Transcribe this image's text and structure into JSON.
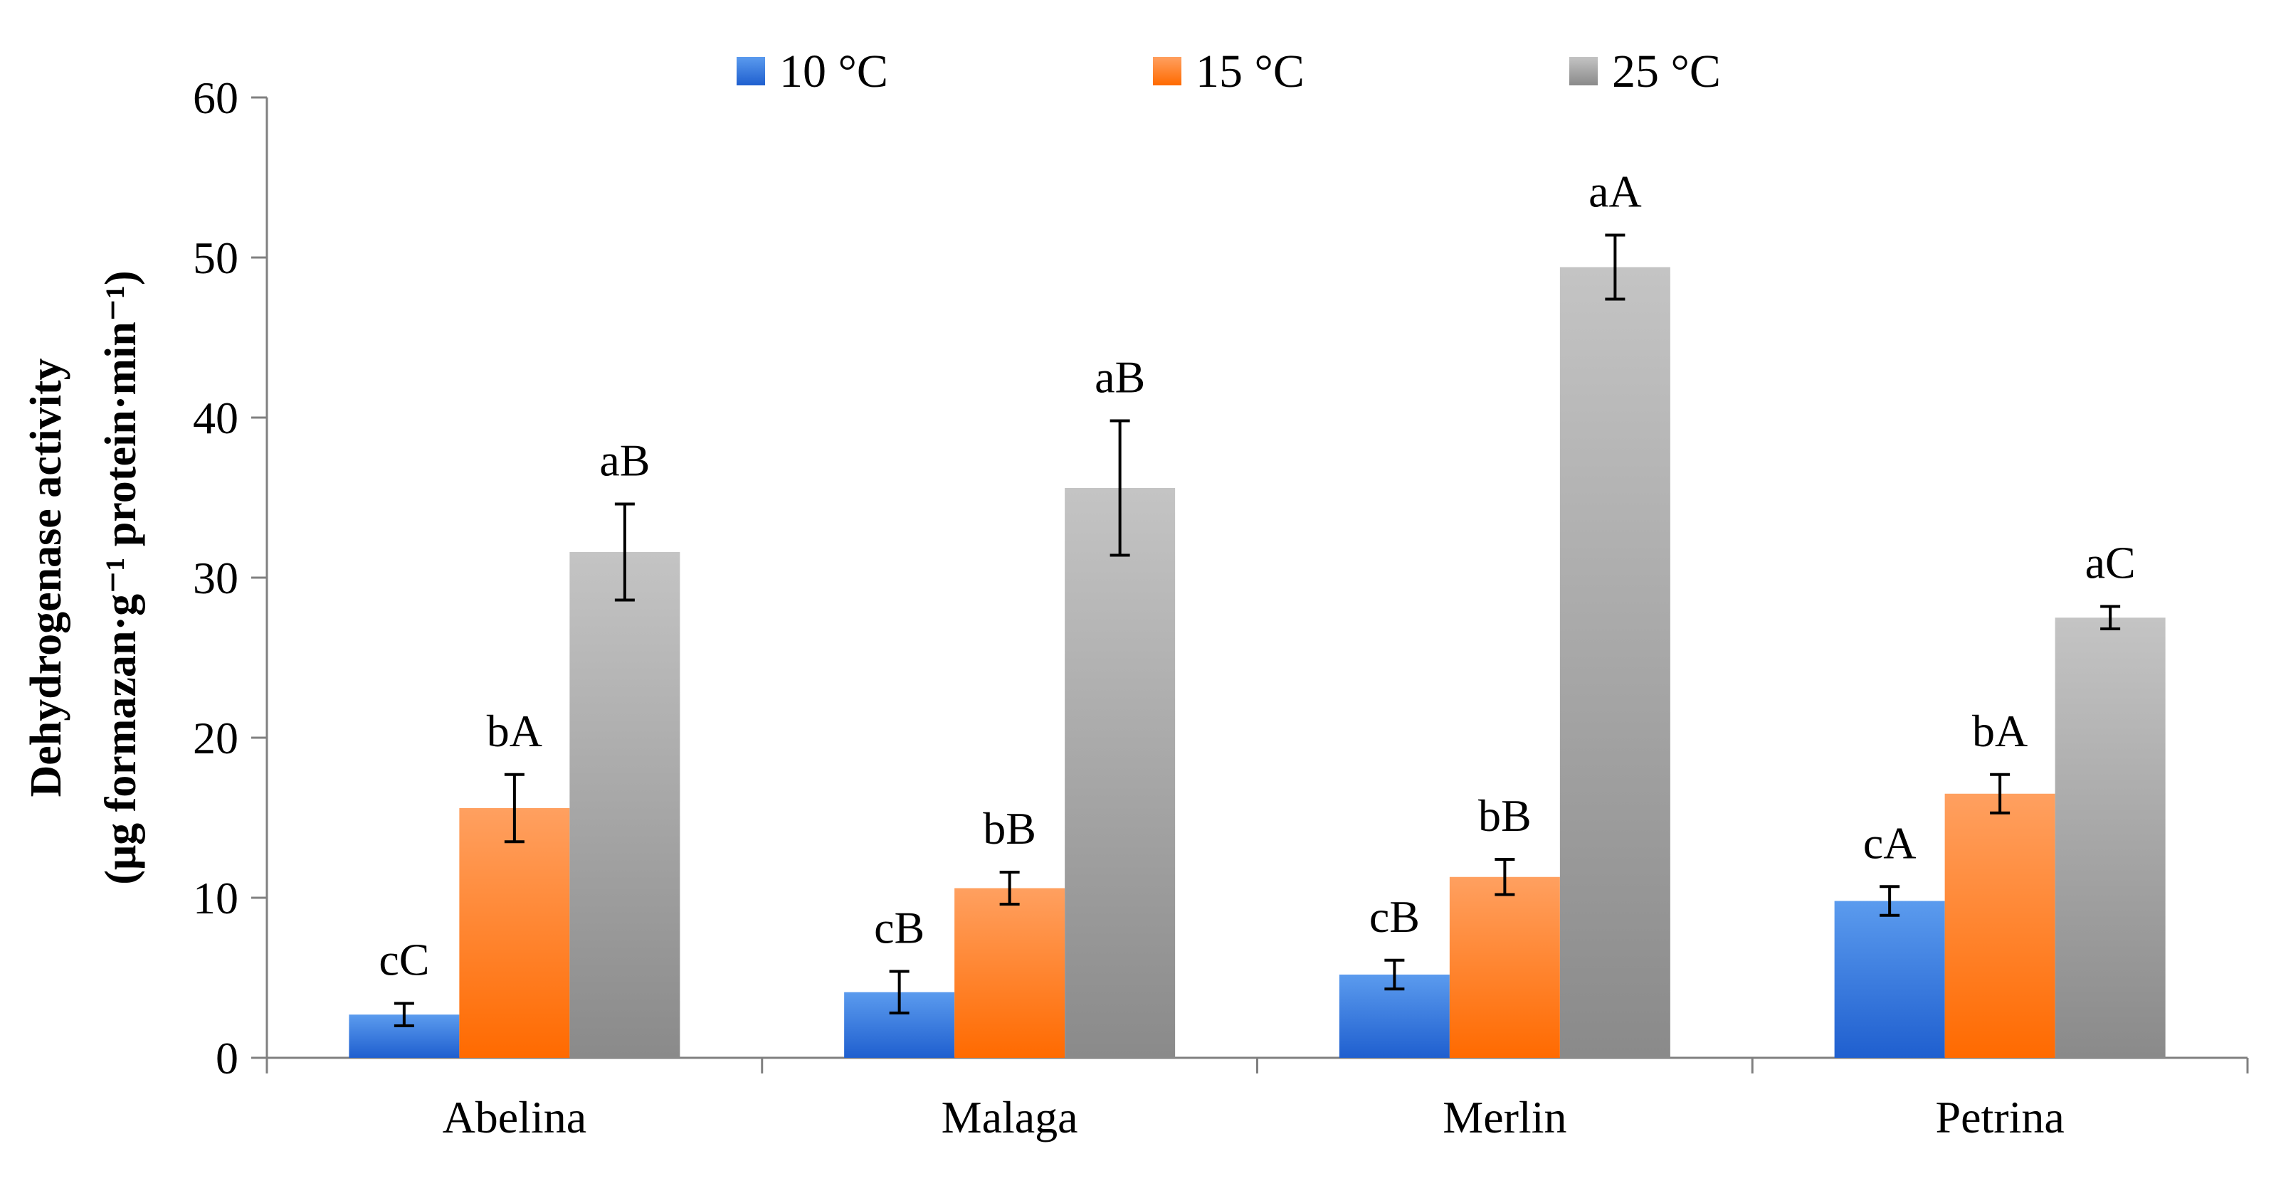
{
  "chart_data": {
    "type": "bar",
    "title": "",
    "xlabel": "",
    "ylabel": "Dehydrogenase activity",
    "ylabel_line2": "(μg formazan·g⁻¹ protein·min⁻¹)",
    "ylim": [
      0,
      60
    ],
    "yticks": [
      0,
      10,
      20,
      30,
      40,
      50,
      60
    ],
    "ytick_labels": [
      "0",
      "10",
      "20",
      "30",
      "40",
      "50",
      "60"
    ],
    "grid": false,
    "legend_position": "top",
    "categories": [
      "Abelina",
      "Malaga",
      "Merlin",
      "Petrina"
    ],
    "series": [
      {
        "name": "10 °C",
        "color": "#1f5fcf",
        "color_light": "#5b9bee",
        "values": [
          2.7,
          4.1,
          5.2,
          9.8
        ],
        "errors": [
          0.7,
          1.3,
          0.9,
          0.9
        ],
        "labels": [
          "cC",
          "cB",
          "cB",
          "cA"
        ]
      },
      {
        "name": "15 °C",
        "color": "#ff6a00",
        "color_light": "#ffa060",
        "values": [
          15.6,
          10.6,
          11.3,
          16.5
        ],
        "errors": [
          2.1,
          1.0,
          1.1,
          1.2
        ],
        "labels": [
          "bA",
          "bB",
          "bB",
          "bA"
        ]
      },
      {
        "name": "25 °C",
        "color": "#8a8a8a",
        "color_light": "#c4c4c4",
        "values": [
          31.6,
          35.6,
          49.4,
          27.5
        ],
        "errors": [
          3.0,
          4.2,
          2.0,
          0.7
        ],
        "labels": [
          "aB",
          "aB",
          "aA",
          "aC"
        ]
      }
    ]
  }
}
